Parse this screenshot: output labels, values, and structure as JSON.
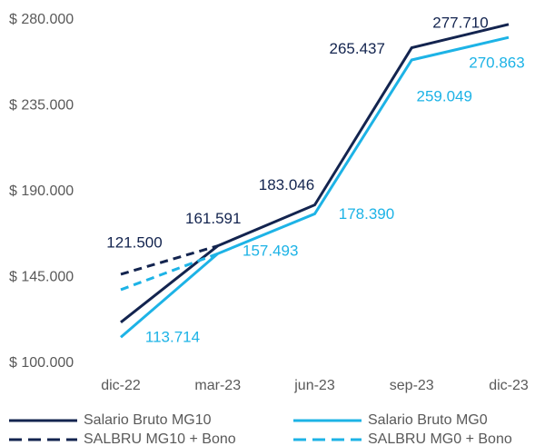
{
  "chart_data": {
    "type": "line",
    "categories": [
      "dic-22",
      "mar-23",
      "jun-23",
      "sep-23",
      "dic-23"
    ],
    "series": [
      {
        "name": "Salario Bruto MG10",
        "color": "#13244f",
        "line_style": "solid",
        "values": [
          121500,
          161591,
          183046,
          265437,
          277710
        ],
        "value_labels": [
          "121.500",
          "161.591",
          "183.046",
          "265.437",
          "277.710"
        ]
      },
      {
        "name": "Salario Bruto MG0",
        "color": "#1db3e6",
        "line_style": "solid",
        "values": [
          113714,
          157493,
          178390,
          259049,
          270863
        ],
        "value_labels": [
          "113.714",
          "157.493",
          "178.390",
          "259.049",
          "270.863"
        ]
      },
      {
        "name": "SALBRU MG10 + Bono",
        "color": "#13244f",
        "line_style": "dashed",
        "values": [
          146700,
          161591,
          null,
          null,
          null
        ]
      },
      {
        "name": "SALBRU MG0 + Bono",
        "color": "#1db3e6",
        "line_style": "dashed",
        "values": [
          138600,
          157493,
          null,
          null,
          null
        ]
      }
    ],
    "ylim": [
      100000,
      280000
    ],
    "yticks": [
      {
        "value": 100000,
        "label": "$ 100.000"
      },
      {
        "value": 145000,
        "label": "$ 145.000"
      },
      {
        "value": 190000,
        "label": "$ 190.000"
      },
      {
        "value": 235000,
        "label": "$ 235.000"
      },
      {
        "value": 280000,
        "label": "$ 280.000"
      }
    ],
    "grid": false,
    "legend": "bottom"
  }
}
